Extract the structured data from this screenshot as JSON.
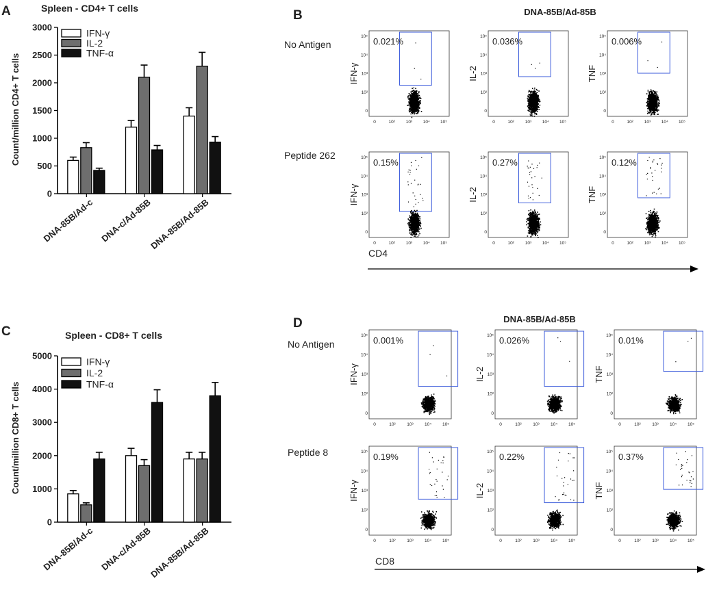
{
  "panel_letters": {
    "A": "A",
    "B": "B",
    "C": "C",
    "D": "D"
  },
  "chart_data": [
    {
      "type": "bar",
      "panel": "A",
      "title": "Spleen - CD4+ T cells",
      "xlabel": "",
      "ylabel": "Count/million CD4+ T cells",
      "ylim": [
        0,
        3000
      ],
      "yticks": [
        0,
        500,
        1000,
        1500,
        2000,
        2500,
        3000
      ],
      "categories": [
        "DNA-85B/Ad-c",
        "DNA-c/Ad-85B",
        "DNA-85B/Ad-85B"
      ],
      "series": [
        {
          "name": "IFN-γ",
          "color": "#ffffff",
          "values": [
            600,
            1200,
            1400
          ],
          "errors": [
            60,
            120,
            150
          ]
        },
        {
          "name": "IL-2",
          "color": "#6e6e6e",
          "values": [
            830,
            2100,
            2300
          ],
          "errors": [
            90,
            220,
            250
          ]
        },
        {
          "name": "TNF-α",
          "color": "#111111",
          "values": [
            420,
            790,
            930
          ],
          "errors": [
            40,
            80,
            100
          ]
        }
      ],
      "legend_position": "top-left"
    },
    {
      "type": "bar",
      "panel": "C",
      "title": "Spleen - CD8+ T cells",
      "xlabel": "",
      "ylabel": "Count/million CD8+ T cells",
      "ylim": [
        0,
        5000
      ],
      "yticks": [
        0,
        1000,
        2000,
        3000,
        4000,
        5000
      ],
      "categories": [
        "DNA-85B/Ad-c",
        "DNA-c/Ad-85B",
        "DNA-85B/Ad-85B"
      ],
      "series": [
        {
          "name": "IFN-γ",
          "color": "#ffffff",
          "values": [
            850,
            2000,
            1900
          ],
          "errors": [
            100,
            220,
            200
          ]
        },
        {
          "name": "IL-2",
          "color": "#6e6e6e",
          "values": [
            520,
            1700,
            1900
          ],
          "errors": [
            60,
            180,
            200
          ]
        },
        {
          "name": "TNF-α",
          "color": "#111111",
          "values": [
            1900,
            3600,
            3800
          ],
          "errors": [
            200,
            380,
            400
          ]
        }
      ],
      "legend_position": "top-left"
    }
  ],
  "flow_B": {
    "title": "DNA-85B/Ad-85B",
    "x_axis_label": "CD4",
    "rows": [
      {
        "condition": "No Antigen",
        "plots": [
          {
            "ylabel": "IFN-γ",
            "pct": "0.021%"
          },
          {
            "ylabel": "IL-2",
            "pct": "0.036%"
          },
          {
            "ylabel": "TNF",
            "pct": "0.006%"
          }
        ]
      },
      {
        "condition": "Peptide 262",
        "plots": [
          {
            "ylabel": "IFN-γ",
            "pct": "0.15%"
          },
          {
            "ylabel": "IL-2",
            "pct": "0.27%"
          },
          {
            "ylabel": "TNF",
            "pct": "0.12%"
          }
        ]
      }
    ],
    "x_ticks": [
      "0",
      "10²",
      "10³",
      "10⁴",
      "10⁵"
    ],
    "y_ticks": [
      "10⁵",
      "10⁴",
      "10³",
      "10²",
      "0"
    ]
  },
  "flow_D": {
    "title": "DNA-85B/Ad-85B",
    "x_axis_label": "CD8",
    "rows": [
      {
        "condition": "No Antigen",
        "plots": [
          {
            "ylabel": "IFN-γ",
            "pct": "0.001%"
          },
          {
            "ylabel": "IL-2",
            "pct": "0.026%"
          },
          {
            "ylabel": "TNF",
            "pct": "0.01%"
          }
        ]
      },
      {
        "condition": "Peptide 8",
        "plots": [
          {
            "ylabel": "IFN-γ",
            "pct": "0.19%"
          },
          {
            "ylabel": "IL-2",
            "pct": "0.22%"
          },
          {
            "ylabel": "TNF",
            "pct": "0.37%"
          }
        ]
      }
    ],
    "x_ticks": [
      "0",
      "10²",
      "10³",
      "10⁴",
      "10⁵"
    ],
    "y_ticks": [
      "10⁵",
      "10⁴",
      "10³",
      "10²",
      "0"
    ]
  },
  "colors": {
    "gate": "#3b5bdb",
    "dots": "#000000",
    "axis": "#000000"
  }
}
